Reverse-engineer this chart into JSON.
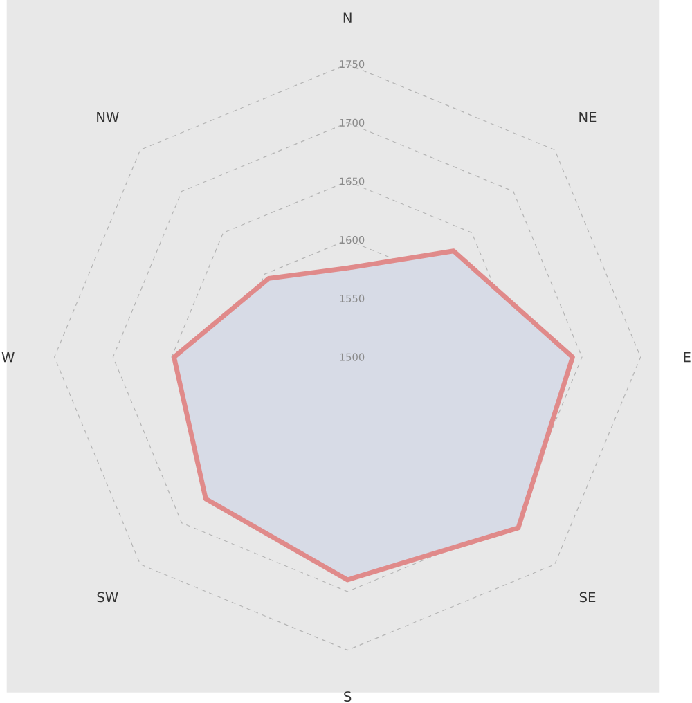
{
  "chart_data": {
    "type": "radar",
    "categories": [
      "N",
      "NE",
      "E",
      "SE",
      "S",
      "SW",
      "W",
      "NW"
    ],
    "ylim": [
      1500,
      1750
    ],
    "yticks": [
      1500,
      1550,
      1600,
      1650,
      1700,
      1750
    ],
    "grid": true,
    "series": [
      {
        "color": "#e08a8a",
        "values": [
          1576,
          1628,
          1692,
          1706,
          1690,
          1671,
          1648,
          1595
        ]
      }
    ]
  }
}
